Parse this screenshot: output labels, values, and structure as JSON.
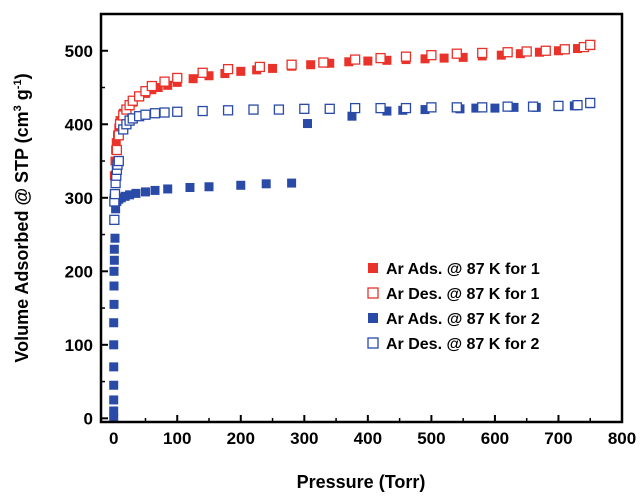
{
  "chart_data": {
    "type": "scatter",
    "title": "",
    "xlabel": "Pressure (Torr)",
    "ylabel_main": "Volume Adsorbed @ STP (cm",
    "ylabel_sup1": "3",
    "ylabel_mid": " g",
    "ylabel_sup2": "-1",
    "ylabel_end": ")",
    "xlim": [
      -20,
      800
    ],
    "ylim": [
      -5,
      550
    ],
    "xticks": [
      0,
      100,
      200,
      300,
      400,
      500,
      600,
      700,
      800
    ],
    "yticks": [
      0,
      100,
      200,
      300,
      400,
      500
    ],
    "legend_position": "lower-right",
    "series": [
      {
        "name": "Ar Ads. @ 87 K for 1",
        "color": "#e8322a",
        "filled": true,
        "points": [
          [
            0.5,
            300
          ],
          [
            1,
            330
          ],
          [
            2,
            350
          ],
          [
            3,
            365
          ],
          [
            4,
            375
          ],
          [
            6,
            385
          ],
          [
            8,
            395
          ],
          [
            10,
            405
          ],
          [
            15,
            415
          ],
          [
            20,
            420
          ],
          [
            25,
            425
          ],
          [
            30,
            430
          ],
          [
            40,
            437
          ],
          [
            50,
            442
          ],
          [
            60,
            447
          ],
          [
            70,
            450
          ],
          [
            85,
            453
          ],
          [
            100,
            457
          ],
          [
            125,
            462
          ],
          [
            150,
            466
          ],
          [
            175,
            469
          ],
          [
            200,
            472
          ],
          [
            225,
            474
          ],
          [
            250,
            476
          ],
          [
            280,
            479
          ],
          [
            310,
            481
          ],
          [
            340,
            483
          ],
          [
            370,
            485
          ],
          [
            400,
            486
          ],
          [
            430,
            487
          ],
          [
            460,
            488
          ],
          [
            490,
            489
          ],
          [
            520,
            490
          ],
          [
            550,
            491
          ],
          [
            580,
            493
          ],
          [
            610,
            494
          ],
          [
            640,
            496
          ],
          [
            670,
            498
          ],
          [
            700,
            500
          ],
          [
            730,
            503
          ],
          [
            750,
            507
          ]
        ]
      },
      {
        "name": "Ar Des. @ 87 K for 1",
        "color": "#e8322a",
        "filled": false,
        "points": [
          [
            5,
            365
          ],
          [
            8,
            385
          ],
          [
            10,
            400
          ],
          [
            15,
            412
          ],
          [
            20,
            420
          ],
          [
            25,
            426
          ],
          [
            30,
            432
          ],
          [
            40,
            438
          ],
          [
            50,
            445
          ],
          [
            60,
            452
          ],
          [
            80,
            458
          ],
          [
            100,
            463
          ],
          [
            140,
            470
          ],
          [
            180,
            475
          ],
          [
            230,
            478
          ],
          [
            280,
            481
          ],
          [
            330,
            484
          ],
          [
            380,
            488
          ],
          [
            420,
            490
          ],
          [
            460,
            492
          ],
          [
            500,
            494
          ],
          [
            540,
            496
          ],
          [
            580,
            497
          ],
          [
            620,
            498
          ],
          [
            650,
            499
          ],
          [
            680,
            500
          ],
          [
            710,
            502
          ],
          [
            740,
            505
          ],
          [
            750,
            508
          ]
        ]
      },
      {
        "name": "Ar Ads. @ 87 K for 2",
        "color": "#2a4aa8",
        "filled": true,
        "points": [
          [
            0,
            0
          ],
          [
            0,
            10
          ],
          [
            0,
            25
          ],
          [
            0,
            45
          ],
          [
            0,
            70
          ],
          [
            0,
            100
          ],
          [
            0,
            130
          ],
          [
            0.5,
            155
          ],
          [
            0.5,
            180
          ],
          [
            0.5,
            200
          ],
          [
            1,
            215
          ],
          [
            1,
            230
          ],
          [
            2,
            245
          ],
          [
            3,
            285
          ],
          [
            5,
            295
          ],
          [
            8,
            298
          ],
          [
            12,
            300
          ],
          [
            18,
            302
          ],
          [
            25,
            304
          ],
          [
            35,
            306
          ],
          [
            50,
            308
          ],
          [
            65,
            310
          ],
          [
            85,
            312
          ],
          [
            120,
            314
          ],
          [
            150,
            315
          ],
          [
            200,
            317
          ],
          [
            240,
            319
          ],
          [
            280,
            320
          ],
          [
            305,
            401
          ],
          [
            375,
            411
          ],
          [
            430,
            418
          ],
          [
            455,
            419
          ],
          [
            490,
            420
          ],
          [
            545,
            421
          ],
          [
            570,
            422
          ],
          [
            600,
            422
          ],
          [
            630,
            423
          ],
          [
            665,
            423
          ],
          [
            700,
            424
          ],
          [
            725,
            425
          ],
          [
            750,
            428
          ]
        ]
      },
      {
        "name": "Ar Des. @ 87 K for 2",
        "color": "#2a4aa8",
        "filled": false,
        "points": [
          [
            1,
            270
          ],
          [
            1,
            295
          ],
          [
            2,
            305
          ],
          [
            3,
            320
          ],
          [
            4,
            330
          ],
          [
            5,
            338
          ],
          [
            6,
            345
          ],
          [
            8,
            350
          ],
          [
            15,
            393
          ],
          [
            20,
            400
          ],
          [
            25,
            405
          ],
          [
            30,
            408
          ],
          [
            40,
            411
          ],
          [
            50,
            413
          ],
          [
            65,
            415
          ],
          [
            80,
            416
          ],
          [
            100,
            417
          ],
          [
            140,
            418
          ],
          [
            180,
            419
          ],
          [
            220,
            420
          ],
          [
            260,
            420
          ],
          [
            300,
            421
          ],
          [
            340,
            421
          ],
          [
            380,
            422
          ],
          [
            420,
            422
          ],
          [
            460,
            422
          ],
          [
            500,
            423
          ],
          [
            540,
            423
          ],
          [
            580,
            423
          ],
          [
            620,
            424
          ],
          [
            660,
            424
          ],
          [
            700,
            425
          ],
          [
            730,
            426
          ],
          [
            750,
            429
          ]
        ]
      }
    ]
  }
}
